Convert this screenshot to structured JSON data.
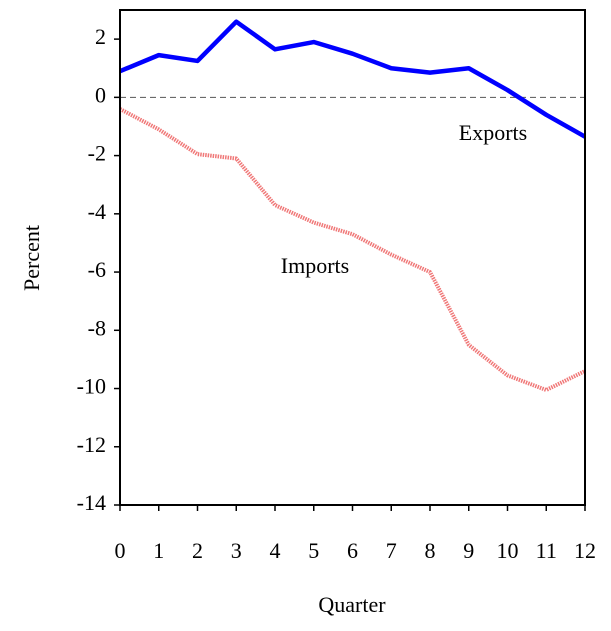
{
  "chart_data": {
    "type": "line",
    "x_label": "Quarter",
    "y_label": "Percent",
    "x": [
      0,
      1,
      2,
      3,
      4,
      5,
      6,
      7,
      8,
      9,
      10,
      11,
      12
    ],
    "series": [
      {
        "name": "Exports",
        "color": "#0000ff",
        "style": "solid",
        "values": [
          0.9,
          1.45,
          1.25,
          2.6,
          1.65,
          1.9,
          1.5,
          1.0,
          0.85,
          1.0,
          0.25,
          -0.6,
          -1.35
        ]
      },
      {
        "name": "Imports",
        "color": "#f07878",
        "style": "dotted",
        "values": [
          -0.4,
          -1.1,
          -1.95,
          -2.1,
          -3.7,
          -4.3,
          -4.7,
          -5.4,
          -6.0,
          -8.5,
          -9.55,
          -10.05,
          -9.4
        ]
      }
    ],
    "xlim": [
      0,
      12
    ],
    "xticks": [
      0,
      1,
      2,
      3,
      4,
      5,
      6,
      7,
      8,
      9,
      10,
      11,
      12
    ],
    "ylim": [
      -14,
      3
    ],
    "yticks": [
      -14,
      -12,
      -10,
      -8,
      -6,
      -4,
      -2,
      0,
      2
    ],
    "zero_line": true,
    "grid": false
  }
}
